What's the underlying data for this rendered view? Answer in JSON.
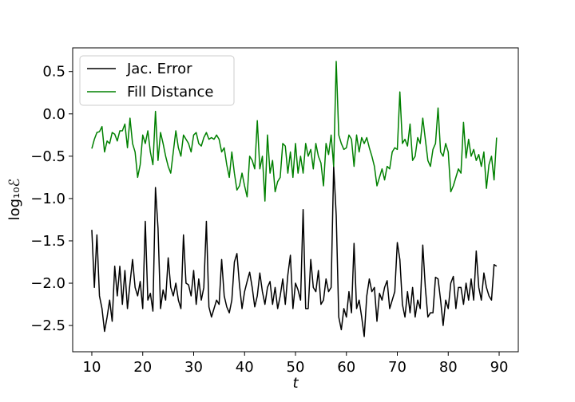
{
  "chart_data": {
    "type": "line",
    "xlabel": "t",
    "ylabel": "log₁₀ℰ",
    "x": [
      10,
      10.5,
      11,
      11.5,
      12,
      12.5,
      13,
      13.5,
      14,
      14.5,
      15,
      15.5,
      16,
      16.5,
      17,
      17.5,
      18,
      18.5,
      19,
      19.5,
      20,
      20.5,
      21,
      21.5,
      22,
      22.5,
      23,
      23.5,
      24,
      24.5,
      25,
      25.5,
      26,
      26.5,
      27,
      27.5,
      28,
      28.5,
      29,
      29.5,
      30,
      30.5,
      31,
      31.5,
      32,
      32.5,
      33,
      33.5,
      34,
      34.5,
      35,
      35.5,
      36,
      36.5,
      37,
      37.5,
      38,
      38.5,
      39,
      39.5,
      40,
      40.5,
      41,
      41.5,
      42,
      42.5,
      43,
      43.5,
      44,
      44.5,
      45,
      45.5,
      46,
      46.5,
      47,
      47.5,
      48,
      48.5,
      49,
      49.5,
      50,
      50.5,
      51,
      51.5,
      52,
      52.5,
      53,
      53.5,
      54,
      54.5,
      55,
      55.5,
      56,
      56.5,
      57,
      57.5,
      58,
      58.5,
      59,
      59.5,
      60,
      60.5,
      61,
      61.5,
      62,
      62.5,
      63,
      63.5,
      64,
      64.5,
      65,
      65.5,
      66,
      66.5,
      67,
      67.5,
      68,
      68.5,
      69,
      69.5,
      70,
      70.5,
      71,
      71.5,
      72,
      72.5,
      73,
      73.5,
      74,
      74.5,
      75,
      75.5,
      76,
      76.5,
      77,
      77.5,
      78,
      78.5,
      79,
      79.5,
      80,
      80.5,
      81,
      81.5,
      82,
      82.5,
      83,
      83.5,
      84,
      84.5,
      85,
      85.5,
      86,
      86.5,
      87,
      87.5,
      88,
      88.5,
      89,
      89.5
    ],
    "series": [
      {
        "name": "Jac. Error",
        "color": "#000000",
        "values": [
          -1.37,
          -2.05,
          -1.43,
          -2.15,
          -2.3,
          -2.57,
          -2.4,
          -2.2,
          -2.45,
          -1.8,
          -2.15,
          -1.8,
          -2.25,
          -1.85,
          -2.3,
          -2.0,
          -1.72,
          -2.05,
          -2.15,
          -1.98,
          -2.3,
          -1.27,
          -2.2,
          -2.12,
          -2.33,
          -0.87,
          -1.35,
          -2.3,
          -2.08,
          -2.2,
          -1.7,
          -2.05,
          -2.15,
          -2.0,
          -2.2,
          -2.3,
          -1.43,
          -2.0,
          -2.02,
          -2.15,
          -1.85,
          -2.25,
          -1.95,
          -2.2,
          -2.05,
          -1.27,
          -2.28,
          -2.4,
          -2.3,
          -2.2,
          -2.25,
          -1.72,
          -2.15,
          -2.28,
          -2.35,
          -2.2,
          -1.75,
          -1.65,
          -2.02,
          -2.3,
          -2.1,
          -1.98,
          -1.87,
          -2.05,
          -2.28,
          -2.15,
          -1.88,
          -2.1,
          -2.25,
          -2.05,
          -1.98,
          -2.25,
          -2.05,
          -2.3,
          -2.15,
          -1.95,
          -2.25,
          -1.9,
          -1.67,
          -2.3,
          -2.0,
          -2.08,
          -2.2,
          -1.13,
          -2.3,
          -2.3,
          -1.72,
          -2.05,
          -2.1,
          -1.85,
          -2.25,
          -2.2,
          -1.95,
          -2.1,
          -2.05,
          -0.62,
          -1.2,
          -2.4,
          -2.55,
          -2.3,
          -2.4,
          -2.1,
          -2.35,
          -1.53,
          -2.3,
          -2.2,
          -2.4,
          -2.63,
          -2.15,
          -1.95,
          -2.1,
          -2.05,
          -2.45,
          -2.12,
          -2.2,
          -2.05,
          -1.97,
          -2.3,
          -2.2,
          -2.1,
          -1.52,
          -1.72,
          -2.25,
          -2.4,
          -2.1,
          -2.35,
          -2.05,
          -2.4,
          -2.2,
          -2.3,
          -1.55,
          -2.05,
          -2.4,
          -2.35,
          -2.35,
          -1.93,
          -1.95,
          -2.2,
          -2.5,
          -2.2,
          -2.3,
          -2.0,
          -1.92,
          -2.3,
          -2.05,
          -2.05,
          -2.25,
          -2.0,
          -2.2,
          -1.95,
          -2.2,
          -1.62,
          -2.05,
          -2.2,
          -1.88,
          -2.05,
          -2.15,
          -2.2,
          -1.78,
          -1.8
        ]
      },
      {
        "name": "Fill Distance",
        "color": "#008000",
        "values": [
          -0.41,
          -0.3,
          -0.22,
          -0.21,
          -0.15,
          -0.45,
          -0.32,
          -0.35,
          -0.22,
          -0.24,
          -0.32,
          -0.2,
          -0.2,
          -0.12,
          -0.4,
          -0.05,
          -0.35,
          -0.45,
          -0.75,
          -0.6,
          -0.25,
          -0.35,
          -0.2,
          -0.45,
          -0.6,
          0.03,
          -0.55,
          -0.22,
          -0.35,
          -0.5,
          -0.62,
          -0.7,
          -0.45,
          -0.2,
          -0.4,
          -0.5,
          -0.25,
          -0.3,
          -0.35,
          -0.45,
          -0.25,
          -0.22,
          -0.35,
          -0.38,
          -0.28,
          -0.22,
          -0.3,
          -0.28,
          -0.3,
          -0.25,
          -0.3,
          -0.45,
          -0.4,
          -0.6,
          -0.75,
          -0.45,
          -0.7,
          -0.9,
          -0.85,
          -0.7,
          -0.85,
          -0.98,
          -0.5,
          -0.55,
          -0.65,
          -0.08,
          -0.65,
          -0.5,
          -1.03,
          -0.25,
          -0.7,
          -0.55,
          -0.92,
          -0.8,
          -0.75,
          -0.35,
          -0.38,
          -0.7,
          -0.45,
          -0.75,
          -0.35,
          -0.7,
          -0.5,
          -0.7,
          -0.35,
          -0.5,
          -0.42,
          -0.65,
          -0.35,
          -0.5,
          -0.58,
          -0.85,
          -0.35,
          -0.48,
          -0.25,
          -0.62,
          0.62,
          -0.25,
          -0.35,
          -0.42,
          -0.4,
          -0.25,
          -0.3,
          -0.62,
          -0.25,
          -0.45,
          -0.28,
          -0.35,
          -0.28,
          -0.4,
          -0.5,
          -0.62,
          -0.85,
          -0.75,
          -0.65,
          -0.78,
          -0.62,
          -0.65,
          -0.45,
          -0.4,
          -0.42,
          0.26,
          -0.35,
          -0.3,
          -0.38,
          -0.12,
          -0.55,
          -0.5,
          -0.28,
          -0.35,
          -0.05,
          -0.3,
          -0.55,
          -0.62,
          -0.42,
          -0.35,
          0.07,
          -0.45,
          -0.5,
          -0.35,
          -0.45,
          -0.92,
          -0.85,
          -0.75,
          -0.65,
          -0.7,
          -0.1,
          -0.52,
          -0.3,
          -0.5,
          -0.42,
          -0.55,
          -0.48,
          -0.62,
          -0.45,
          -0.88,
          -0.6,
          -0.5,
          -0.78,
          -0.28
        ]
      }
    ],
    "xlim": [
      6.24,
      93.76
    ],
    "ylim": [
      -2.81,
      0.78
    ],
    "xticks": [
      10,
      20,
      30,
      40,
      50,
      60,
      70,
      80,
      90
    ],
    "yticks": [
      0.5,
      {
        "value": 0,
        "label": "0.0"
      },
      {
        "value": -0.5,
        "label": "−0.5"
      },
      {
        "value": -1,
        "label": "−1.0"
      },
      {
        "value": -1.5,
        "label": "−1.5"
      },
      {
        "value": -2,
        "label": "−2.0"
      },
      {
        "value": -2.5,
        "label": "−2.5"
      }
    ],
    "legend": "upper left"
  }
}
